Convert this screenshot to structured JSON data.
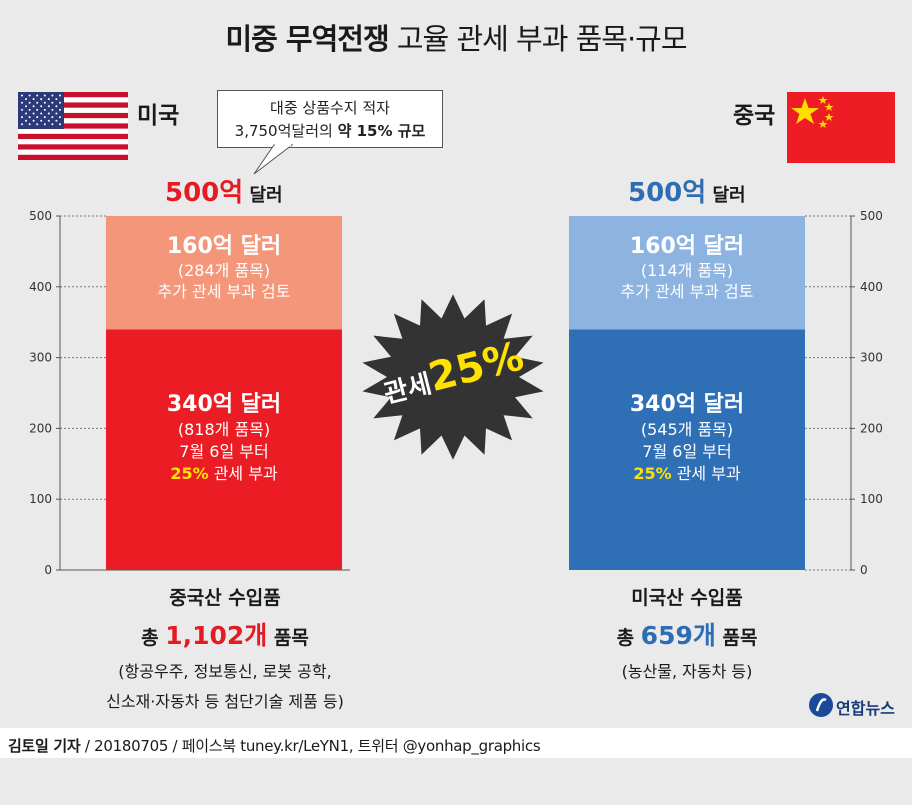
{
  "title": {
    "bold": "미중 무역전쟁",
    "light": "고율 관세 부과 품목·규모"
  },
  "us": {
    "name": "미국",
    "callout_line1": "대중 상품수지 적자",
    "callout_line2_prefix": "3,750억달러의 ",
    "callout_line2_bold": "약 15% 규모",
    "total_num": "500억",
    "total_unit": " 달러",
    "bottom_title": "중국산 수입품",
    "count_prefix": "총 ",
    "count_num": "1,102개",
    "count_suffix": " 품목",
    "detail1": "(항공우주, 정보통신, 로봇 공학,",
    "detail2": "신소재·자동차 등 첨단기술 제품 등)"
  },
  "cn": {
    "name": "중국",
    "total_num": "500억",
    "total_unit": " 달러",
    "bottom_title": "미국산 수입품",
    "count_prefix": "총 ",
    "count_num": "659개",
    "count_suffix": " 품목",
    "detail1": "(농산물, 자동차 등)"
  },
  "badge": {
    "word": "관세",
    "num": "25%"
  },
  "colors": {
    "us_upper": "#f3967a",
    "us_lower": "#ec1c24",
    "cn_upper": "#8db4e0",
    "cn_lower": "#2f6fb5",
    "us_accent": "#e41b23",
    "cn_accent": "#2e6db4",
    "highlight": "#ffe200",
    "badge_bg": "#333333"
  },
  "chart_data": [
    {
      "type": "bar",
      "stacked": true,
      "categories": [
        "미국"
      ],
      "ylim": [
        0,
        500
      ],
      "yticks": [
        0,
        100,
        200,
        300,
        400,
        500
      ],
      "series": [
        {
          "values": [
            340
          ],
          "label": "340억 달러",
          "items": "(818개 품목)",
          "note": "7월 6일 부터",
          "tariff": "25%",
          "tariff_text": " 관세 부과"
        },
        {
          "values": [
            160
          ],
          "label": "160억 달러",
          "items": "(284개 품목)",
          "note": "추가 관세 부과 검토"
        }
      ]
    },
    {
      "type": "bar",
      "stacked": true,
      "categories": [
        "중국"
      ],
      "ylim": [
        0,
        500
      ],
      "yticks": [
        0,
        100,
        200,
        300,
        400,
        500
      ],
      "series": [
        {
          "values": [
            340
          ],
          "label": "340억 달러",
          "items": "(545개 품목)",
          "note": "7월 6일 부터",
          "tariff": "25%",
          "tariff_text": " 관세 부과"
        },
        {
          "values": [
            160
          ],
          "label": "160억 달러",
          "items": "(114개 품목)",
          "note": "추가 관세 부과 검토"
        }
      ]
    }
  ],
  "footer": {
    "author": "김토일 기자",
    "rest": " / 20180705 / 페이스북 tuney.kr/LeYN1, 트위터 @yonhap_graphics"
  },
  "logo": {
    "text": "연합뉴스"
  }
}
